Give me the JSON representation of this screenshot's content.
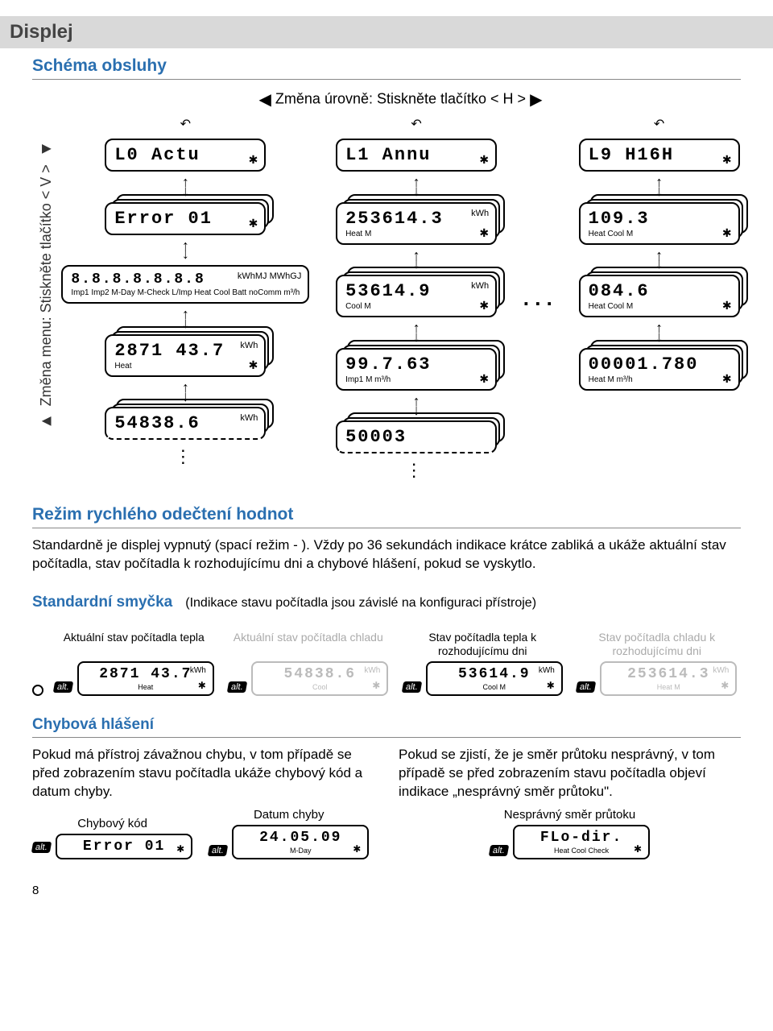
{
  "header": {
    "title": "Displej",
    "subtitle": "Schéma obsluhy"
  },
  "nav": {
    "vertical_label": "Změna menu: Stiskněte tlačítko < V >",
    "horizontal_label": "Změna úrovně: Stiskněte tlačítko < H >"
  },
  "diagram": {
    "ellipsis": ". . .",
    "col1": {
      "top": {
        "text": "L0  Actu"
      },
      "r1": {
        "text": "Error 01"
      },
      "r2": {
        "text": "8.8.8.8.8.8.8",
        "units": "kWhMJ\nMWhGJ",
        "sub": "Imp1 Imp2 M-Day M-Check L/Imp\nHeat Cool Batt noComm m³/h"
      },
      "r3": {
        "text": "2871 43.7",
        "units": "kWh",
        "sub": "Heat"
      },
      "r4": {
        "text": "54838.6",
        "units": "kWh"
      }
    },
    "col2": {
      "top": {
        "text": "L1  Annu"
      },
      "r1": {
        "text": "253614.3",
        "units": "kWh",
        "sub": "Heat         M"
      },
      "r2": {
        "text": "53614.9",
        "units": "kWh",
        "sub": "Cool         M"
      },
      "r3": {
        "text": "99.7.63",
        "sub": "Imp1       M        m³/h"
      },
      "r4": {
        "text": "50003"
      }
    },
    "col3": {
      "top": {
        "text": "L9  H16H"
      },
      "r1": {
        "text": "109.3",
        "sub": "Heat Cool      M"
      },
      "r2": {
        "text": "084.6",
        "sub": "Heat Cool      M"
      },
      "r3": {
        "text": "00001.780",
        "sub": "Heat          M       m³/h"
      }
    }
  },
  "quickread": {
    "heading": "Režim rychlého odečtení hodnot",
    "para": "Standardně je displej vypnutý (spací režim -   ). Vždy po 36 sekundách indikace krátce zabliká a ukáže aktuální stav počítadla, stav počítadla k rozhodujícímu dni a chybové hlášení, pokud se vyskytlo."
  },
  "loop": {
    "heading": "Standardní smyčka",
    "note": "(Indikace stavu počítadla jsou závislé na konfiguraci přístroje)",
    "alt": "alt.",
    "items": [
      {
        "cap": "Aktuální stav počítadla tepla",
        "text": "2871 43.7",
        "units": "kWh",
        "sub": "Heat",
        "faded": false
      },
      {
        "cap": "Aktuální stav počítadla chladu",
        "text": "54838.6",
        "units": "kWh",
        "sub": "Cool",
        "faded": true
      },
      {
        "cap": "Stav počítadla tepla k rozhodujícímu dni",
        "text": "53614.9",
        "units": "kWh",
        "sub": "Cool        M",
        "faded": false
      },
      {
        "cap": "Stav počítadla chladu k rozhodujícímu dni",
        "text": "253614.3",
        "units": "kWh",
        "sub": "Heat        M",
        "faded": true
      }
    ]
  },
  "errors": {
    "heading": "Chybová hlášení",
    "left_para": "Pokud má přístroj závažnou chybu, v tom případě se před zobrazením stavu počítadla ukáže chybový kód a datum chyby.",
    "right_para": "Pokud se zjistí, že je směr průtoku nesprávný, v tom případě se před zobrazením stavu počítadla objeví indikace „nesprávný směr průtoku\".",
    "code_cap": "Chybový kód",
    "code_text": "Error 01",
    "date_cap": "Datum chyby",
    "date_text": "24.05.09",
    "date_sub": "M-Day",
    "flow_cap": "Nesprávný směr průtoku",
    "flow_text": "FLo-dir.",
    "flow_sub": "Heat Cool          Check",
    "alt": "alt."
  },
  "page": "8"
}
